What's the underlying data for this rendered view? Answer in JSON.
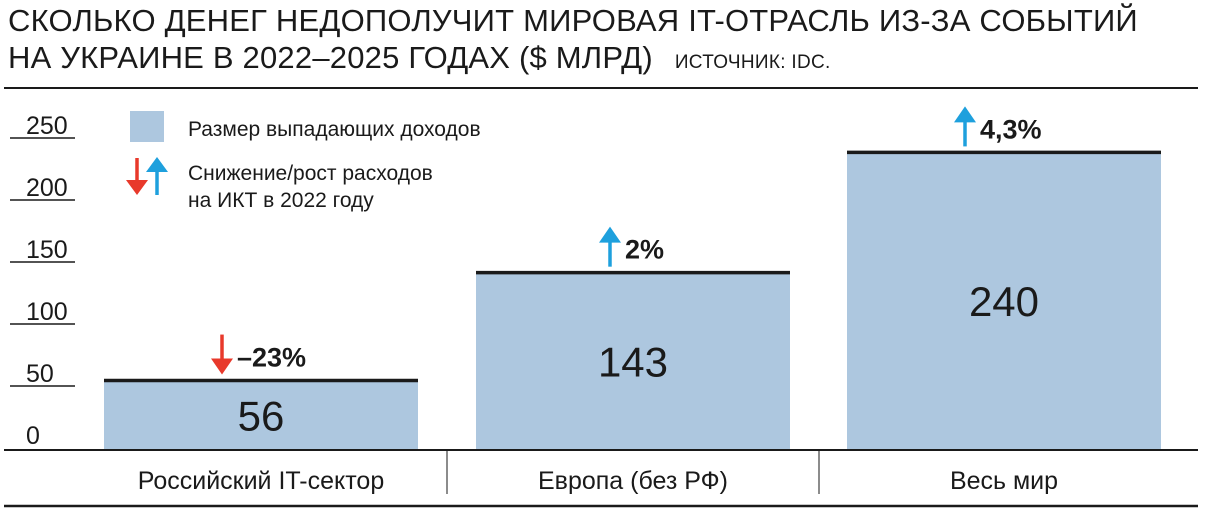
{
  "title_line1": "СКОЛЬКО ДЕНЕГ НЕДОПОЛУЧИТ МИРОВАЯ IT-ОТРАСЛЬ ИЗ-ЗА СОБЫТИЙ",
  "title_line2": "НА УКРАИНЕ В 2022–2025 ГОДАХ ($ МЛРД)",
  "source": "ИСТОЧНИК: IDC.",
  "legend": {
    "bars": "Размер выпадающих доходов",
    "arrows_line1": "Снижение/рост расходов",
    "arrows_line2": "на ИКТ в 2022 году"
  },
  "colors": {
    "bar": "#adc7df",
    "up_arrow": "#1ea0dd",
    "down_arrow": "#e8392b",
    "text": "#1a1a1a"
  },
  "chart_data": {
    "type": "bar",
    "categories": [
      "Российский IT-сектор",
      "Европа (без РФ)",
      "Весь мир"
    ],
    "values": [
      56,
      143,
      240
    ],
    "value_labels": [
      "56",
      "143",
      "240"
    ],
    "change_labels": [
      "–23%",
      "2%",
      "4,3%"
    ],
    "change_direction": [
      "down",
      "up",
      "up"
    ],
    "yticks": [
      0,
      50,
      100,
      150,
      200,
      250
    ],
    "ytick_labels": [
      "0",
      "50",
      "100",
      "150",
      "200",
      "250"
    ],
    "ylim": [
      0,
      250
    ],
    "grid": false,
    "legend_position": "top-left"
  }
}
